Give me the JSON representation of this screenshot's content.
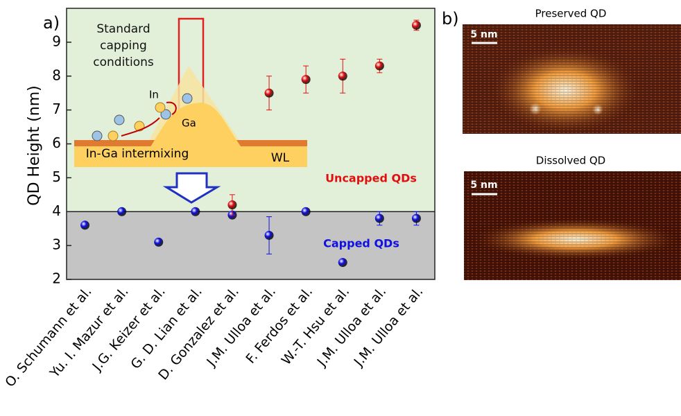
{
  "chart_data": {
    "type": "scatter",
    "panel_label": "a)",
    "y_label": "QD Height (nm)",
    "categories": [
      "O. Schumann et al.",
      "Yu. I. Mazur et al.",
      "J.G. Keizer et al.",
      "G. D. Lian et al.",
      "D. Gonzalez et al.",
      "J.M. Ulloa et al.",
      "F. Ferdos et al.",
      "W.-T. Hsu et al.",
      "J.M. Ulloa et al.",
      "J.M. Ulloa et al."
    ],
    "series": [
      {
        "name": "Capped QDs",
        "color": "#1010e0",
        "values": [
          3.6,
          4.0,
          3.1,
          4.0,
          3.9,
          3.3,
          4.0,
          2.5,
          3.8,
          3.8
        ],
        "errors": [
          null,
          null,
          null,
          null,
          null,
          0.55,
          null,
          null,
          0.2,
          0.2
        ]
      },
      {
        "name": "Uncapped QDs",
        "color": "#e01010",
        "values": [
          null,
          null,
          null,
          null,
          4.2,
          7.5,
          7.9,
          8.0,
          8.3,
          9.5
        ],
        "errors": [
          null,
          null,
          null,
          null,
          0.3,
          0.5,
          0.4,
          0.5,
          0.2,
          0.15
        ]
      }
    ],
    "ylim": [
      2,
      10
    ],
    "yticks": [
      2,
      3,
      4,
      5,
      6,
      7,
      8,
      9
    ],
    "region_split": 4,
    "upper_region_color": "#e2f0d9",
    "lower_region_color": "#c4c4c4",
    "inset": {
      "caption": "Standard capping conditions",
      "in_label": "In",
      "ga_label": "Ga",
      "intermixing_label": "In-Ga intermixing",
      "wl_label": "WL"
    }
  },
  "panel_b": {
    "panel_label": "b)",
    "images": [
      {
        "title": "Preserved QD",
        "scale_bar": "5 nm"
      },
      {
        "title": "Dissolved QD",
        "scale_bar": "5 nm"
      }
    ]
  }
}
